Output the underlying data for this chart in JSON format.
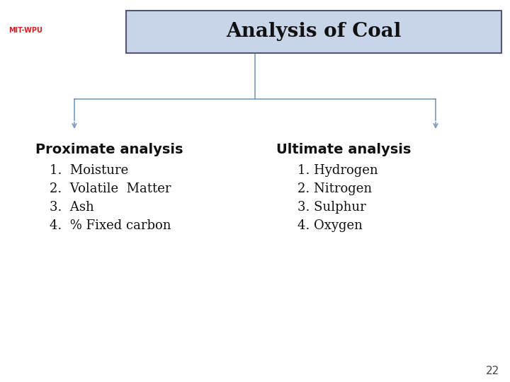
{
  "title": "Analysis of Coal",
  "title_bg_color": "#c8d4e8",
  "title_border_color": "#555577",
  "title_fontsize": 20,
  "bg_color": "#ffffff",
  "left_heading": "Proximate analysis",
  "left_items": [
    "1.  Moisture",
    "2.  Volatile  Matter",
    "3.  Ash",
    "4.  % Fixed carbon"
  ],
  "right_heading": "Ultimate analysis",
  "right_items": [
    "1. Hydrogen",
    "2. Nitrogen",
    "3. Sulphur",
    "4. Oxygen"
  ],
  "heading_fontsize": 14,
  "item_fontsize": 13,
  "arrow_color": "#7799bb",
  "line_color": "#7799bb",
  "page_number": "22",
  "page_num_fontsize": 11
}
